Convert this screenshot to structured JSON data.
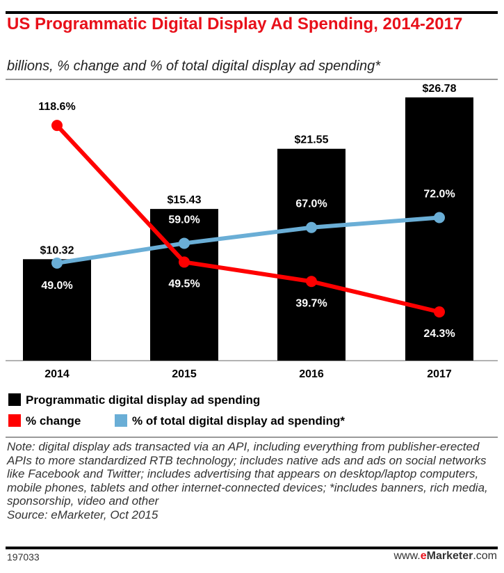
{
  "chart_data": {
    "type": "bar+line",
    "title": "US Programmatic Digital Display Ad Spending, 2014-2017",
    "subtitle": "billions, % change and % of total digital display ad spending*",
    "categories": [
      "2014",
      "2015",
      "2016",
      "2017"
    ],
    "series": [
      {
        "name": "Programmatic digital display ad spending",
        "type": "bar",
        "color": "#000000",
        "values": [
          10.32,
          15.43,
          21.55,
          26.78
        ],
        "labels": [
          "$10.32",
          "$15.43",
          "$21.55",
          "$26.78"
        ]
      },
      {
        "name": "% change",
        "type": "line",
        "color": "#ff0000",
        "values": [
          118.6,
          49.5,
          39.7,
          24.3
        ],
        "labels": [
          "118.6%",
          "49.5%",
          "39.7%",
          "24.3%"
        ]
      },
      {
        "name": "% of total digital display ad spending*",
        "type": "line",
        "color": "#6aaed6",
        "values": [
          49.0,
          59.0,
          67.0,
          72.0
        ],
        "labels": [
          "49.0%",
          "59.0%",
          "67.0%",
          "72.0%"
        ]
      }
    ],
    "grid": false,
    "legend": "bottom"
  },
  "notes": "Note: digital display ads transacted via an API, including everything from publisher-erected APIs to more standardized RTB technology; includes native ads and ads on social networks like Facebook and Twitter; includes advertising that appears on desktop/laptop computers, mobile phones, tablets and other internet-connected devices; *includes banners, rich media, sponsorship, video and other",
  "source": "Source: eMarketer, Oct 2015",
  "footer": {
    "id": "197033",
    "brand_prefix": "www.",
    "brand_e": "e",
    "brand_name": "Marketer",
    "brand_suffix": ".com"
  }
}
